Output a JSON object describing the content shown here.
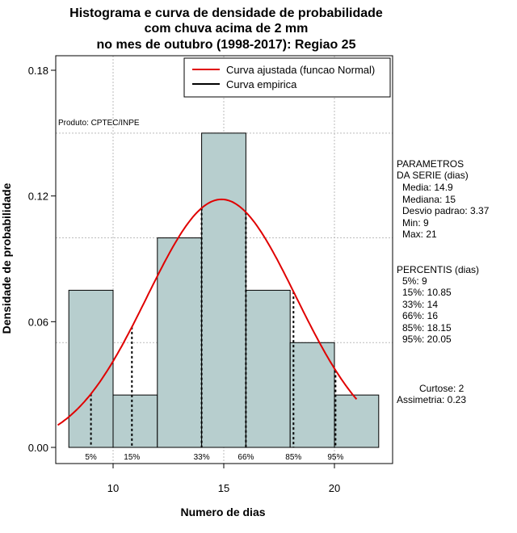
{
  "title": {
    "line1": "Histograma e curva de densidade de probabilidade",
    "line2": "com chuva acima de 2 mm",
    "line3": "no mes de outubro (1998-2017): Regiao 25"
  },
  "colors": {
    "bar_fill": "#b7cece",
    "bar_stroke": "#000000",
    "fitted_curve": "#e00000",
    "grid": "#bbbbbb"
  },
  "chart_data": {
    "type": "bar",
    "title": "Histograma e curva de densidade de probabilidade com chuva acima de 2 mm no mes de outubro (1998-2017): Regiao 25",
    "xlabel": "Numero de dias",
    "ylabel": "Densidade de probabilidade",
    "xlim": [
      7.5,
      22.6
    ],
    "ylim": [
      0,
      0.18
    ],
    "xticks": [
      10,
      15,
      20
    ],
    "xtick_labels": [
      "10",
      "15",
      "20"
    ],
    "yticks": [
      0,
      0.06,
      0.12,
      0.18
    ],
    "ytick_labels": [
      "0.00",
      "0.06",
      "0.12",
      "0.18"
    ],
    "grid": true,
    "hgrid_values": [
      0.05,
      0.1,
      0.15
    ],
    "vgrid_values": [
      10,
      15,
      20
    ],
    "bins": [
      {
        "start": 8,
        "end": 10,
        "density": 0.075
      },
      {
        "start": 10,
        "end": 12,
        "density": 0.025
      },
      {
        "start": 12,
        "end": 14,
        "density": 0.1
      },
      {
        "start": 14,
        "end": 16,
        "density": 0.15
      },
      {
        "start": 16,
        "end": 18,
        "density": 0.075
      },
      {
        "start": 18,
        "end": 20,
        "density": 0.05
      },
      {
        "start": 20,
        "end": 22,
        "density": 0.025
      }
    ],
    "fitted_normal": {
      "mean": 14.9,
      "sd": 3.37,
      "x_range": [
        7.5,
        21
      ]
    },
    "percentiles": [
      {
        "label": "5%",
        "value": 9
      },
      {
        "label": "15%",
        "value": 10.85
      },
      {
        "label": "33%",
        "value": 14
      },
      {
        "label": "66%",
        "value": 16
      },
      {
        "label": "85%",
        "value": 18.15
      },
      {
        "label": "95%",
        "value": 20.05
      }
    ],
    "legend": {
      "position": "top-right",
      "entries": [
        {
          "label": "Curva ajustada (funcao Normal)",
          "color": "#e00000"
        },
        {
          "label": "Curva empirica",
          "color": "#000000"
        }
      ]
    },
    "annotation": "Produto: CPTEC/INPE"
  },
  "stats": {
    "parametros_title_1": "PARAMETROS",
    "parametros_title_2": "DA SERIE (dias)",
    "media": "Media: 14.9",
    "mediana": "Mediana: 15",
    "desvio": "Desvio padrao: 3.37",
    "min": "Min: 9",
    "max": "Max: 21",
    "percentis_title": "PERCENTIS (dias)",
    "p5": "5%: 9",
    "p15": "15%: 10.85",
    "p33": "33%: 14",
    "p66": "66%: 16",
    "p85": "85%: 18.15",
    "p95": "95%: 20.05",
    "curtose": "Curtose: 2",
    "assimetria": "Assimetria: 0.23"
  }
}
